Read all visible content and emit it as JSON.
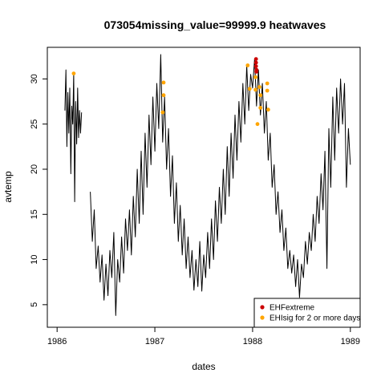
{
  "chart_data": {
    "type": "line",
    "title": "073054missing_value=99999.9 heatwaves",
    "xlabel": "dates",
    "ylabel": "avtemp",
    "xlim": [
      1985.9,
      1989.1
    ],
    "ylim": [
      2.5,
      33.5
    ],
    "xticks": [
      1986,
      1987,
      1988,
      1989
    ],
    "xtick_labels": [
      "1986",
      "1987",
      "1988",
      "1989"
    ],
    "yticks": [
      5,
      10,
      15,
      20,
      25,
      30
    ],
    "ytick_labels": [
      "5",
      "10",
      "15",
      "20",
      "25",
      "30"
    ],
    "grid": false,
    "legend_position": "bottom-right",
    "series_color": "#000000",
    "missing_gap": [
      1986.28,
      1986.33
    ],
    "segments": [
      {
        "x": [
          1986.08,
          1986.09,
          1986.1,
          1986.11,
          1986.12,
          1986.13,
          1986.14,
          1986.15,
          1986.16,
          1986.17,
          1986.18,
          1986.19,
          1986.2,
          1986.21,
          1986.22,
          1986.23,
          1986.24,
          1986.25
        ],
        "y": [
          26.5,
          31.0,
          22.5,
          28.5,
          24.0,
          29.0,
          19.5,
          27.0,
          25.0,
          30.6,
          16.4,
          27.5,
          22.8,
          29.0,
          23.5,
          26.5,
          24.0,
          26.3
        ]
      },
      {
        "x": [
          1986.34,
          1986.36,
          1986.38,
          1986.4,
          1986.42,
          1986.44,
          1986.46,
          1986.48,
          1986.5,
          1986.52,
          1986.54,
          1986.56,
          1986.58,
          1986.6,
          1986.62,
          1986.64,
          1986.66,
          1986.68,
          1986.7,
          1986.72,
          1986.74,
          1986.76,
          1986.78,
          1986.8,
          1986.82,
          1986.84,
          1986.86,
          1986.88,
          1986.9,
          1986.92,
          1986.94,
          1986.96,
          1986.98,
          1987.0,
          1987.02,
          1987.04,
          1987.06,
          1987.08,
          1987.1,
          1987.12,
          1987.14,
          1987.16,
          1987.18,
          1987.2,
          1987.22,
          1987.24,
          1987.26,
          1987.28,
          1987.3,
          1987.32,
          1987.34,
          1987.36,
          1987.38,
          1987.4,
          1987.42,
          1987.44,
          1987.46,
          1987.48,
          1987.5,
          1987.52,
          1987.54,
          1987.56,
          1987.58,
          1987.6,
          1987.62,
          1987.64,
          1987.66,
          1987.68,
          1987.7,
          1987.72,
          1987.74,
          1987.76,
          1987.78,
          1987.8,
          1987.82,
          1987.84,
          1987.86,
          1987.88,
          1987.9,
          1987.92,
          1987.94,
          1987.96,
          1987.98,
          1988.0,
          1988.02,
          1988.04,
          1988.06,
          1988.08,
          1988.1,
          1988.12,
          1988.14,
          1988.16,
          1988.18,
          1988.2,
          1988.22,
          1988.24,
          1988.26,
          1988.28,
          1988.3,
          1988.32,
          1988.34,
          1988.36,
          1988.38,
          1988.4,
          1988.42,
          1988.44,
          1988.46,
          1988.48,
          1988.5,
          1988.52,
          1988.54,
          1988.56,
          1988.58,
          1988.6,
          1988.62,
          1988.64,
          1988.66,
          1988.68,
          1988.7,
          1988.72,
          1988.74,
          1988.76,
          1988.78,
          1988.8,
          1988.82,
          1988.84,
          1988.86,
          1988.88,
          1988.9,
          1988.92,
          1988.94,
          1988.96,
          1988.98,
          1989.0
        ],
        "y": [
          17.5,
          12.0,
          15.5,
          9.0,
          11.5,
          7.5,
          10.5,
          5.5,
          9.5,
          6.0,
          11.0,
          8.0,
          13.0,
          3.8,
          10.0,
          7.5,
          12.5,
          8.5,
          14.5,
          11.0,
          15.5,
          10.5,
          17.0,
          12.5,
          20.0,
          14.0,
          22.0,
          15.0,
          24.0,
          18.0,
          26.0,
          20.5,
          28.0,
          22.0,
          29.5,
          24.5,
          32.7,
          23.0,
          28.0,
          20.0,
          24.5,
          17.0,
          21.5,
          14.0,
          18.5,
          12.0,
          16.0,
          10.5,
          14.5,
          9.0,
          12.5,
          8.0,
          11.0,
          6.6,
          10.0,
          7.0,
          12.0,
          6.5,
          10.5,
          8.0,
          13.0,
          9.0,
          14.5,
          10.0,
          16.5,
          12.0,
          18.0,
          14.0,
          20.0,
          15.0,
          22.5,
          17.0,
          24.0,
          19.0,
          26.0,
          21.0,
          27.5,
          23.0,
          29.5,
          25.0,
          31.5,
          26.5,
          30.5,
          29.0,
          32.2,
          27.0,
          31.0,
          26.0,
          29.5,
          24.0,
          27.5,
          21.0,
          24.0,
          18.0,
          20.5,
          15.0,
          17.5,
          13.0,
          15.5,
          11.0,
          13.5,
          9.0,
          11.0,
          8.5,
          10.5,
          7.0,
          10.0,
          5.8,
          9.5,
          8.0,
          12.0,
          9.5,
          13.0,
          11.0,
          15.0,
          12.0,
          17.0,
          14.0,
          19.5,
          15.5,
          22.0,
          9.0,
          24.5,
          18.0,
          28.0,
          21.0,
          29.0,
          24.0,
          30.0,
          25.0,
          29.5,
          18.0,
          24.5,
          20.5
        ]
      }
    ],
    "legend": [
      {
        "label": "EHFextreme",
        "color": "#cc0000"
      },
      {
        "label": "EHIsig for 2 or more days",
        "color": "#ffa500"
      }
    ],
    "series": [
      {
        "name": "EHFextreme",
        "color": "#cc0000",
        "points": [
          {
            "x": 1988.035,
            "y": 32.2
          },
          {
            "x": 1988.035,
            "y": 31.8
          },
          {
            "x": 1988.035,
            "y": 31.4
          },
          {
            "x": 1988.038,
            "y": 30.8
          },
          {
            "x": 1988.04,
            "y": 31.0
          }
        ]
      },
      {
        "name": "EHIsig for 2 or more days",
        "color": "#ffa500",
        "points": [
          {
            "x": 1986.17,
            "y": 30.6
          },
          {
            "x": 1987.09,
            "y": 29.6
          },
          {
            "x": 1987.09,
            "y": 28.2
          },
          {
            "x": 1987.08,
            "y": 26.3
          },
          {
            "x": 1987.95,
            "y": 31.5
          },
          {
            "x": 1987.97,
            "y": 28.9
          },
          {
            "x": 1988.03,
            "y": 30.2
          },
          {
            "x": 1988.03,
            "y": 28.8
          },
          {
            "x": 1988.05,
            "y": 25.0
          },
          {
            "x": 1988.07,
            "y": 29.1
          },
          {
            "x": 1988.08,
            "y": 28.2
          },
          {
            "x": 1988.08,
            "y": 26.8
          },
          {
            "x": 1988.15,
            "y": 29.5
          },
          {
            "x": 1988.15,
            "y": 28.7
          },
          {
            "x": 1988.16,
            "y": 26.6
          }
        ]
      }
    ]
  }
}
